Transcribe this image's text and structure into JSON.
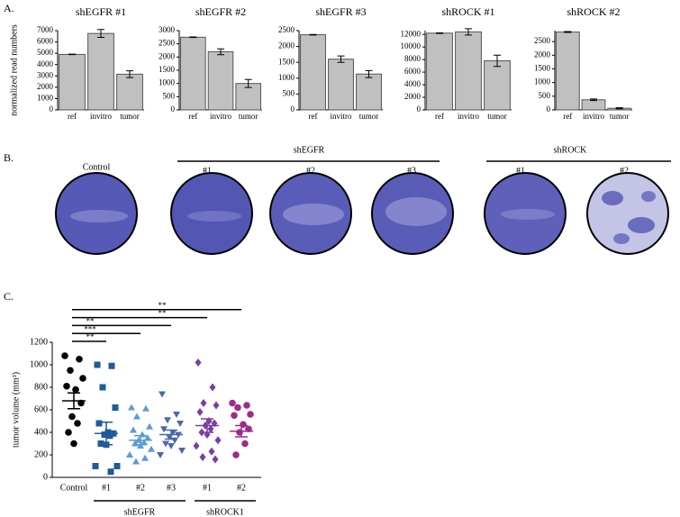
{
  "panel_labels": [
    "A.",
    "B.",
    "C."
  ],
  "chart_data": [
    {
      "type": "bar",
      "title": "shEGFR  #1",
      "ylabel": "normalized read numbers",
      "categories": [
        "ref",
        "invitro",
        "tumor"
      ],
      "values": [
        4900,
        6750,
        3150
      ],
      "errors": [
        20,
        350,
        300
      ],
      "color": "#c0c0c0",
      "ylim": [
        0,
        7000
      ],
      "yticks": [
        0,
        1000,
        2000,
        3000,
        4000,
        5000,
        6000,
        7000
      ]
    },
    {
      "type": "bar",
      "title": "shEGFR  #2",
      "categories": [
        "ref",
        "invitro",
        "tumor"
      ],
      "values": [
        2750,
        2200,
        1000
      ],
      "errors": [
        10,
        110,
        150
      ],
      "color": "#c0c0c0",
      "ylim": [
        0,
        3000
      ],
      "yticks": [
        0,
        500,
        1000,
        1500,
        2000,
        2500,
        3000
      ]
    },
    {
      "type": "bar",
      "title": "shEGFR  #3",
      "categories": [
        "ref",
        "invitro",
        "tumor"
      ],
      "values": [
        2370,
        1600,
        1130
      ],
      "errors": [
        10,
        100,
        110
      ],
      "color": "#c0c0c0",
      "ylim": [
        0,
        2500
      ],
      "yticks": [
        0,
        500,
        1000,
        1500,
        2000,
        2500
      ]
    },
    {
      "type": "bar",
      "title": "shROCK #1",
      "categories": [
        "ref",
        "invitro",
        "tumor"
      ],
      "values": [
        12200,
        12400,
        7800
      ],
      "errors": [
        50,
        500,
        900
      ],
      "color": "#c0c0c0",
      "ylim": [
        0,
        12600
      ],
      "yticks": [
        0,
        2000,
        4000,
        6000,
        8000,
        10000,
        12000
      ]
    },
    {
      "type": "bar",
      "title": "shROCK #2",
      "categories": [
        "ref",
        "invitro",
        "tumor"
      ],
      "values": [
        2850,
        370,
        60
      ],
      "errors": [
        15,
        30,
        20
      ],
      "color": "#c0c0c0",
      "ylim": [
        0,
        2900
      ],
      "yticks": [
        0,
        500,
        1000,
        1500,
        2000,
        2500
      ]
    },
    {
      "type": "dotplot",
      "ylabel": "tumor volume (mm³)",
      "categories": [
        "Control",
        "#1",
        "#2",
        "#3",
        "#1",
        "#2"
      ],
      "groups": [
        {
          "label": "shEGFR",
          "from": 1,
          "to": 3
        },
        {
          "label": "shROCK1",
          "from": 4,
          "to": 5
        }
      ],
      "colors": [
        "#000000",
        "#1f5a9a",
        "#5b9bd5",
        "#4a68ac",
        "#7b3fa0",
        "#a0298d"
      ],
      "markers": [
        "circle",
        "square",
        "triangle",
        "triangle-down",
        "diamond",
        "circle"
      ],
      "points": [
        [
          1080,
          1050,
          950,
          880,
          810,
          780,
          660,
          540,
          480,
          400,
          300
        ],
        [
          1000,
          990,
          800,
          620,
          480,
          400,
          390,
          380,
          370,
          300,
          290,
          100,
          100,
          50
        ],
        [
          620,
          610,
          540,
          450,
          420,
          380,
          350,
          330,
          310,
          300,
          280,
          250,
          200,
          170,
          140
        ],
        [
          740,
          560,
          510,
          480,
          430,
          400,
          380,
          360,
          330,
          300,
          280,
          240,
          200
        ],
        [
          1020,
          800,
          660,
          640,
          580,
          500,
          480,
          460,
          430,
          400,
          380,
          330,
          280,
          230,
          180,
          160
        ],
        [
          660,
          640,
          620,
          560,
          550,
          470,
          430,
          400,
          300,
          200
        ]
      ],
      "means": [
        680,
        390,
        330,
        380,
        460,
        410
      ],
      "sems": [
        70,
        100,
        40,
        40,
        60,
        50
      ],
      "comparisons": [
        {
          "label": "**",
          "to": 1
        },
        {
          "label": "***",
          "to": 2
        },
        {
          "label": "**",
          "to": 3
        },
        {
          "label": "**",
          "to": 4
        },
        {
          "label": "**",
          "to": 5
        }
      ],
      "ylim": [
        0,
        1200
      ],
      "yticks": [
        0,
        200,
        400,
        600,
        800,
        1000,
        1200
      ]
    }
  ],
  "panel_b": {
    "control_label": "Control",
    "groups": [
      {
        "label": "shEGFR",
        "wells": [
          "#1",
          "#2",
          "#3"
        ]
      },
      {
        "label": "shROCK",
        "wells": [
          "#1",
          "#2"
        ]
      }
    ]
  }
}
